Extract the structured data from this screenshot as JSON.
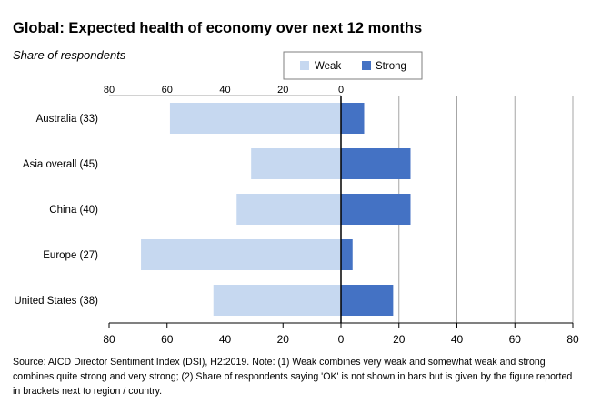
{
  "chart_data": {
    "type": "bar",
    "orientation": "horizontal-diverging",
    "title": "Global: Expected health of economy over next 12 months",
    "subtitle": "Share of respondents",
    "categories": [
      "Australia (33)",
      "Asia overall (45)",
      "China (40)",
      "Europe (27)",
      "United States (38)"
    ],
    "series": [
      {
        "name": "Weak",
        "values": [
          59,
          31,
          36,
          69,
          44
        ],
        "color": "#c6d8f0"
      },
      {
        "name": "Strong",
        "values": [
          8,
          24,
          24,
          4,
          18
        ],
        "color": "#4472c4"
      }
    ],
    "xlim": [
      -80,
      80
    ],
    "xticks": [
      -80,
      -60,
      -40,
      -20,
      0,
      20,
      40,
      60,
      80
    ],
    "xtick_labels": [
      "80",
      "60",
      "40",
      "20",
      "0",
      "20",
      "40",
      "60",
      "80"
    ],
    "ytick_labels": [
      "80",
      "60",
      "40",
      "20",
      "0"
    ],
    "grid": true,
    "legend_position": "top-right"
  },
  "source": "Source: AICD Director Sentiment Index (DSI), H2:2019.  Note: (1) Weak combines very weak and somewhat weak and strong combines quite strong and very strong; (2) Share of respondents saying 'OK' is not shown in bars but is given by the figure reported in brackets next to region / country."
}
